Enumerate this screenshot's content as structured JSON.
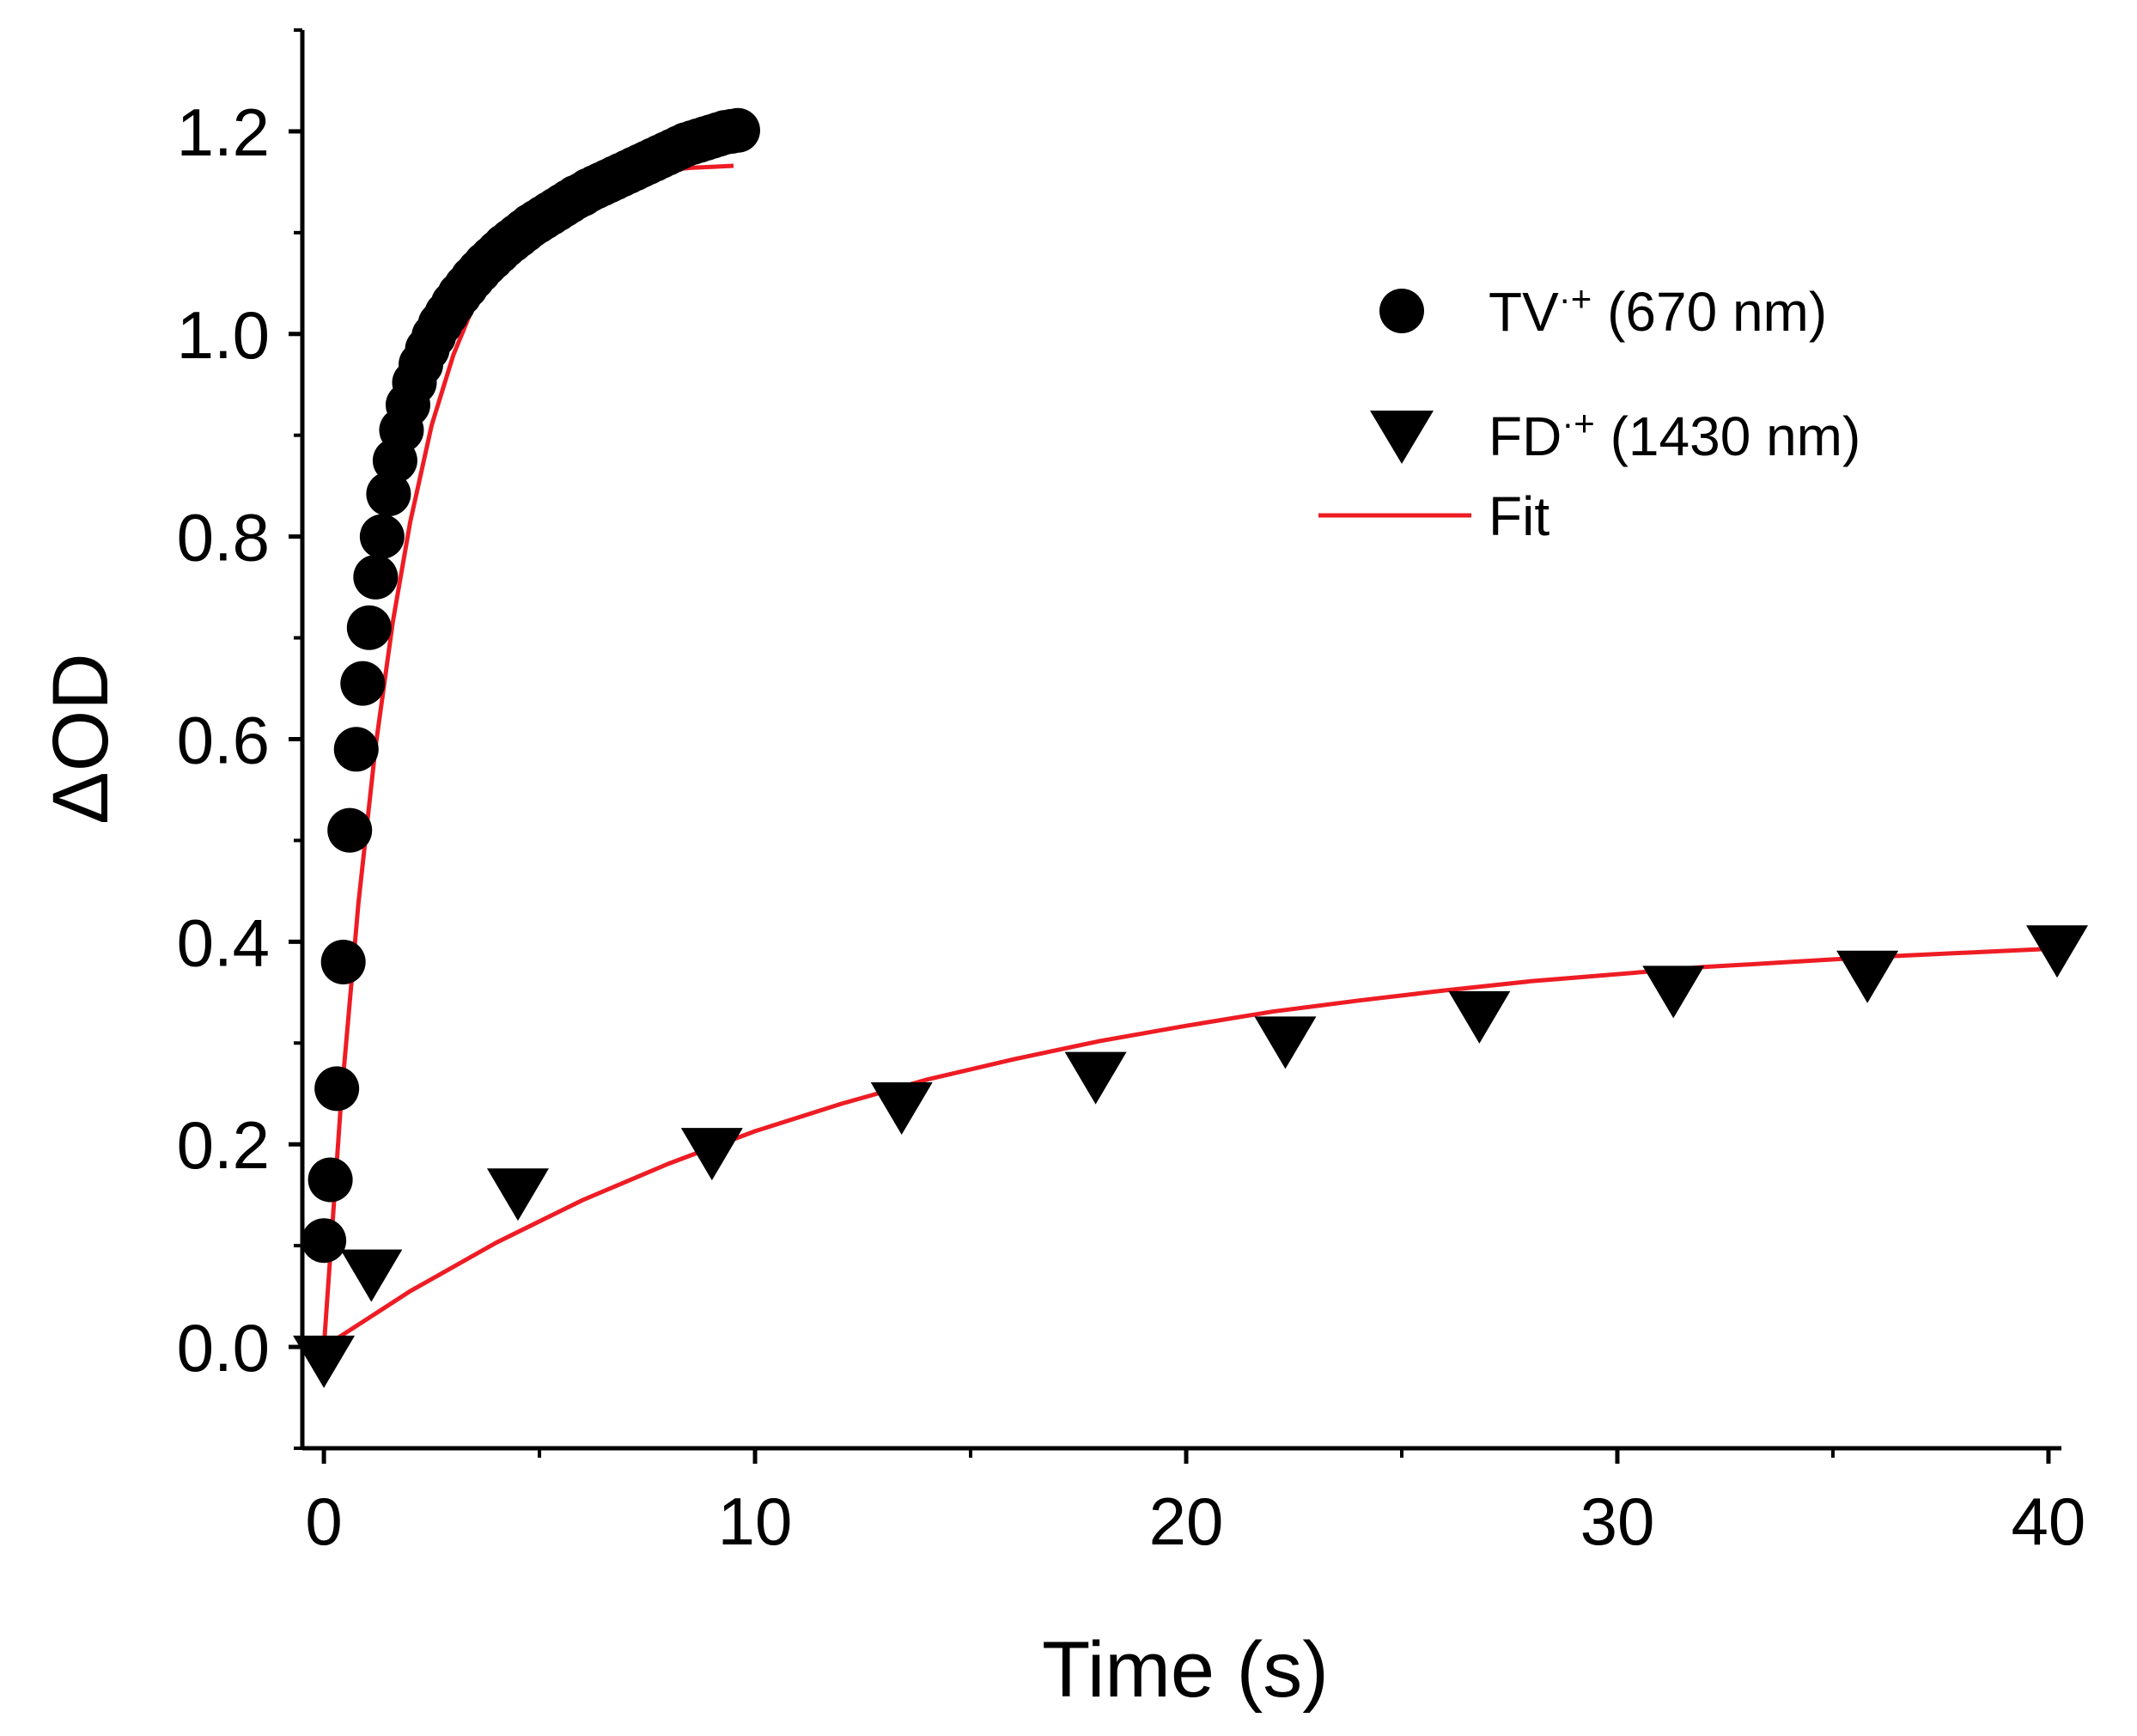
{
  "chart_data": {
    "type": "scatter",
    "xlabel": "Time (s)",
    "ylabel": "ΔOD",
    "xlim": [
      -0.5,
      40.3
    ],
    "ylim": [
      -0.1,
      1.3
    ],
    "x_ticks": [
      0,
      10,
      20,
      30,
      40
    ],
    "x_tick_labels": [
      "0",
      "10",
      "20",
      "30",
      "40"
    ],
    "y_ticks": [
      0.0,
      0.2,
      0.4,
      0.6,
      0.8,
      1.0,
      1.2
    ],
    "y_tick_labels": [
      "0.0",
      "0.2",
      "0.4",
      "0.6",
      "0.8",
      "1.0",
      "1.2"
    ],
    "grid": false,
    "legend_position": "top-right",
    "colors": {
      "markers": "#000000",
      "fit": "#ee1c24",
      "axes": "#000000"
    },
    "series": [
      {
        "name": "TV·+ (670 nm)",
        "legend_main": "TV",
        "legend_sup": "·+",
        "legend_suffix": " (670 nm)",
        "marker": "circle",
        "x": [
          0.0,
          0.15,
          0.3,
          0.45,
          0.6,
          0.75,
          0.9,
          1.05,
          1.2,
          1.35,
          1.5,
          1.65,
          1.8,
          1.95,
          2.1,
          2.25,
          2.4,
          2.55,
          2.7,
          2.85,
          3.0,
          3.15,
          3.3,
          3.45,
          3.6,
          3.75,
          3.9,
          4.05,
          4.2,
          4.35,
          4.5,
          4.65,
          4.8,
          4.95,
          5.1,
          5.25,
          5.4,
          5.55,
          5.7,
          5.85,
          6.0,
          6.15,
          6.3,
          6.45,
          6.6,
          6.75,
          6.9,
          7.05,
          7.2,
          7.35,
          7.5,
          7.65,
          7.8,
          7.95,
          8.1,
          8.25,
          8.4,
          8.55,
          8.7,
          8.85,
          9.0,
          9.15,
          9.3,
          9.45,
          9.6
        ],
        "y": [
          0.105,
          0.165,
          0.255,
          0.38,
          0.51,
          0.59,
          0.655,
          0.71,
          0.76,
          0.8,
          0.842,
          0.875,
          0.905,
          0.93,
          0.952,
          0.97,
          0.985,
          0.998,
          1.01,
          1.02,
          1.03,
          1.039,
          1.047,
          1.055,
          1.062,
          1.069,
          1.075,
          1.081,
          1.087,
          1.092,
          1.097,
          1.102,
          1.107,
          1.111,
          1.115,
          1.119,
          1.123,
          1.127,
          1.131,
          1.135,
          1.138,
          1.142,
          1.145,
          1.148,
          1.151,
          1.154,
          1.157,
          1.16,
          1.163,
          1.166,
          1.169,
          1.172,
          1.175,
          1.178,
          1.181,
          1.184,
          1.187,
          1.189,
          1.191,
          1.193,
          1.195,
          1.197,
          1.199,
          1.2,
          1.201
        ]
      },
      {
        "name": "FD·+ (1430 nm)",
        "legend_main": "FD",
        "legend_sup": "·+",
        "legend_suffix": " (1430 nm)",
        "marker": "triangle-down",
        "x": [
          0.0,
          1.1,
          4.5,
          9.0,
          13.4,
          17.9,
          22.3,
          26.8,
          31.3,
          35.8,
          40.2
        ],
        "y": [
          -0.01,
          0.075,
          0.155,
          0.195,
          0.24,
          0.27,
          0.305,
          0.33,
          0.355,
          0.37,
          0.395
        ]
      },
      {
        "name": "Fit",
        "marker": "line",
        "curves": [
          {
            "x": [
              0.0,
              0.4,
              0.8,
              1.2,
              1.6,
              2.0,
              2.5,
              3.0,
              3.5,
              4.0,
              4.5,
              5.0,
              5.5,
              6.0,
              6.5,
              7.0,
              7.5,
              8.0,
              8.5,
              9.0,
              9.5
            ],
            "y": [
              0.0,
              0.244,
              0.438,
              0.593,
              0.716,
              0.814,
              0.91,
              0.979,
              1.031,
              1.068,
              1.096,
              1.116,
              1.13,
              1.141,
              1.149,
              1.155,
              1.159,
              1.162,
              1.164,
              1.165,
              1.166
            ]
          },
          {
            "x": [
              0.0,
              2.0,
              4.0,
              6.0,
              8.0,
              10.0,
              12.0,
              14.0,
              16.0,
              18.0,
              20.0,
              22.0,
              24.0,
              26.0,
              28.0,
              30.0,
              32.0,
              34.0,
              36.0,
              38.0,
              40.0
            ],
            "y": [
              0.0,
              0.055,
              0.103,
              0.145,
              0.181,
              0.213,
              0.24,
              0.264,
              0.284,
              0.302,
              0.317,
              0.331,
              0.342,
              0.352,
              0.361,
              0.368,
              0.375,
              0.38,
              0.385,
              0.389,
              0.393
            ]
          }
        ]
      }
    ]
  }
}
